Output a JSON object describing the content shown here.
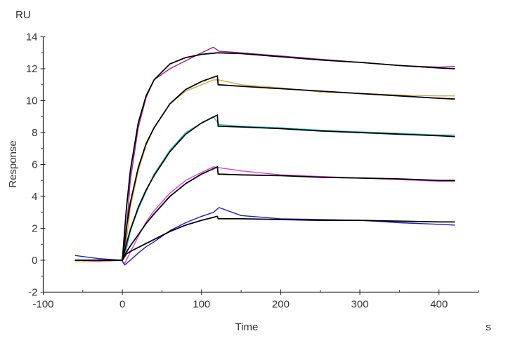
{
  "chart_data": {
    "type": "line",
    "title": "",
    "xlabel": "Time",
    "xunit": "s",
    "ylabel": "Response",
    "yunit": "RU",
    "xlim": [
      -100,
      450
    ],
    "ylim": [
      -2,
      14
    ],
    "xticks": [
      -100,
      0,
      100,
      200,
      300,
      400
    ],
    "yticks": [
      -2,
      0,
      2,
      4,
      6,
      8,
      10,
      12,
      14
    ],
    "grid": false,
    "legend": "none",
    "measured_x": [
      -60,
      -30,
      -1,
      3,
      10,
      20,
      30,
      40,
      60,
      80,
      100,
      115,
      122,
      150,
      200,
      250,
      300,
      350,
      400,
      420
    ],
    "fit_x": [
      -60,
      0,
      5,
      10,
      20,
      30,
      40,
      60,
      80,
      100,
      120,
      121,
      150,
      200,
      250,
      300,
      350,
      400,
      420
    ],
    "series": [
      {
        "kind": "measured",
        "color": "#a0209c",
        "values": [
          0,
          0,
          0,
          0.5,
          5.0,
          8.3,
          10.2,
          11.3,
          12.0,
          12.5,
          13.0,
          13.35,
          13.1,
          13.0,
          12.8,
          12.6,
          12.4,
          12.2,
          12.1,
          12.15
        ]
      },
      {
        "kind": "measured",
        "color": "#d4a640",
        "values": [
          -0.1,
          -0.1,
          0,
          0.3,
          3.3,
          5.6,
          7.2,
          8.3,
          9.8,
          10.6,
          11.0,
          11.3,
          11.3,
          11.0,
          10.8,
          10.55,
          10.45,
          10.35,
          10.3,
          10.3
        ]
      },
      {
        "kind": "measured",
        "color": "#2cc4c8",
        "values": [
          0,
          0,
          0,
          0.2,
          1.8,
          3.2,
          4.3,
          5.4,
          6.9,
          8.0,
          8.6,
          9.0,
          8.5,
          8.4,
          8.3,
          8.15,
          8.05,
          7.95,
          7.85,
          7.85
        ]
      },
      {
        "kind": "measured",
        "color": "#e03ce0",
        "values": [
          0,
          -0.05,
          0,
          -0.2,
          0.5,
          1.5,
          2.4,
          3.1,
          4.2,
          5.0,
          5.5,
          5.85,
          5.8,
          5.6,
          5.35,
          5.25,
          5.15,
          5.05,
          4.95,
          4.95
        ]
      },
      {
        "kind": "measured",
        "color": "#1c1ccc",
        "values": [
          0.3,
          0.1,
          0,
          -0.3,
          0.0,
          0.45,
          0.85,
          1.15,
          1.85,
          2.35,
          2.75,
          3.0,
          3.3,
          2.8,
          2.6,
          2.55,
          2.5,
          2.35,
          2.25,
          2.2
        ]
      },
      {
        "kind": "fit",
        "color": "#000000",
        "values": [
          0,
          0,
          3.2,
          5.6,
          8.6,
          10.3,
          11.3,
          12.3,
          12.7,
          12.9,
          13.0,
          13.0,
          12.95,
          12.75,
          12.55,
          12.4,
          12.2,
          12.05,
          12.0
        ]
      },
      {
        "kind": "fit",
        "color": "#000000",
        "values": [
          0,
          0,
          2.0,
          3.6,
          5.8,
          7.3,
          8.3,
          9.8,
          10.7,
          11.2,
          11.55,
          11.0,
          10.9,
          10.75,
          10.6,
          10.45,
          10.3,
          10.15,
          10.1
        ]
      },
      {
        "kind": "fit",
        "color": "#000000",
        "values": [
          0,
          0,
          1.0,
          1.9,
          3.3,
          4.4,
          5.3,
          6.8,
          7.9,
          8.6,
          9.1,
          8.4,
          8.35,
          8.25,
          8.1,
          8.0,
          7.9,
          7.8,
          7.75
        ]
      },
      {
        "kind": "fit",
        "color": "#000000",
        "values": [
          0,
          0,
          0.5,
          0.9,
          1.6,
          2.3,
          2.9,
          4.0,
          4.8,
          5.4,
          5.85,
          5.4,
          5.35,
          5.3,
          5.2,
          5.15,
          5.1,
          5.0,
          5.0
        ]
      },
      {
        "kind": "fit",
        "color": "#000000",
        "values": [
          0,
          0,
          0.4,
          0.55,
          0.8,
          1.05,
          1.3,
          1.8,
          2.2,
          2.5,
          2.75,
          2.6,
          2.6,
          2.55,
          2.5,
          2.5,
          2.45,
          2.4,
          2.4
        ]
      }
    ]
  }
}
